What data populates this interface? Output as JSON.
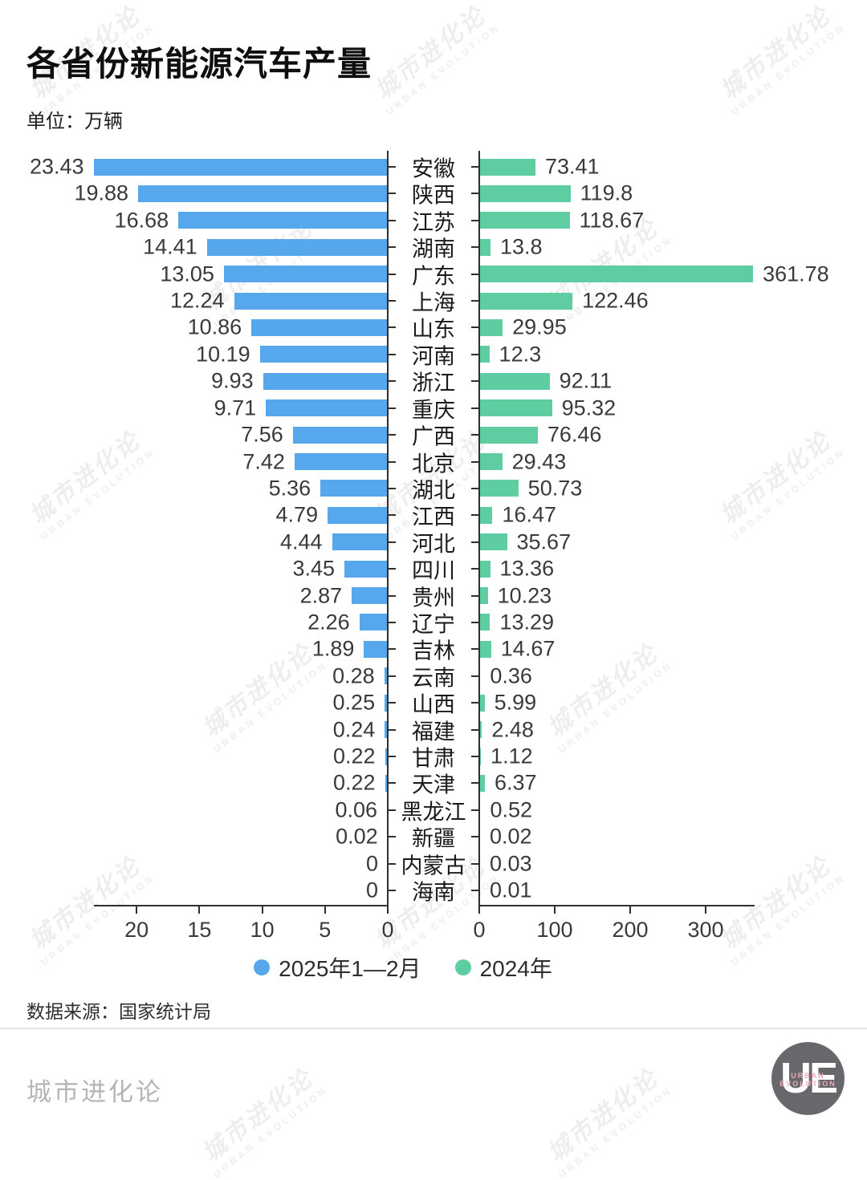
{
  "header": {
    "title": "各省份新能源汽车产量",
    "unit": "单位：万辆"
  },
  "chart_data": {
    "type": "bar",
    "orientation": "horizontal-diverging",
    "categories": [
      "安徽",
      "陕西",
      "江苏",
      "湖南",
      "广东",
      "上海",
      "山东",
      "河南",
      "浙江",
      "重庆",
      "广西",
      "北京",
      "湖北",
      "江西",
      "河北",
      "四川",
      "贵州",
      "辽宁",
      "吉林",
      "云南",
      "山西",
      "福建",
      "甘肃",
      "天津",
      "黑龙江",
      "新疆",
      "内蒙古",
      "海南"
    ],
    "series": [
      {
        "name": "2025年1—2月",
        "side": "left",
        "color": "#56a7ec",
        "values": [
          23.43,
          19.88,
          16.68,
          14.41,
          13.05,
          12.24,
          10.86,
          10.19,
          9.93,
          9.71,
          7.56,
          7.42,
          5.36,
          4.79,
          4.44,
          3.45,
          2.87,
          2.26,
          1.89,
          0.28,
          0.25,
          0.24,
          0.22,
          0.22,
          0.06,
          0.02,
          0,
          0
        ]
      },
      {
        "name": "2024年",
        "side": "right",
        "color": "#5fcda2",
        "values": [
          73.41,
          119.8,
          118.67,
          13.8,
          361.78,
          122.46,
          29.95,
          12.3,
          92.11,
          95.32,
          76.46,
          29.43,
          50.73,
          16.47,
          35.67,
          13.36,
          10.23,
          13.29,
          14.67,
          0.36,
          5.99,
          2.48,
          1.12,
          6.37,
          0.52,
          0.02,
          0.03,
          0.01
        ]
      }
    ],
    "left_axis": {
      "ticks": [
        20,
        15,
        10,
        5,
        0
      ],
      "range": [
        0,
        23.43
      ],
      "direction": "right-to-left"
    },
    "right_axis": {
      "ticks": [
        0,
        100,
        200,
        300
      ],
      "range": [
        0,
        365
      ],
      "direction": "left-to-right"
    },
    "grid": false,
    "legend_position": "bottom",
    "value_labels": true
  },
  "legend": {
    "items": [
      {
        "label": "2025年1—2月",
        "color": "#56a7ec"
      },
      {
        "label": "2024年",
        "color": "#5fcda2"
      }
    ]
  },
  "footer": {
    "source": "数据来源：国家统计局",
    "brand": "城市进化论",
    "logo": {
      "monogram": "UE",
      "subtext": "URBAN EVOLUTION",
      "circle_color": "#68676c",
      "accent_color": "#f0a9bd"
    }
  },
  "watermark": {
    "line1": "城市进化论",
    "line2": "URBAN EVOLUTION"
  }
}
